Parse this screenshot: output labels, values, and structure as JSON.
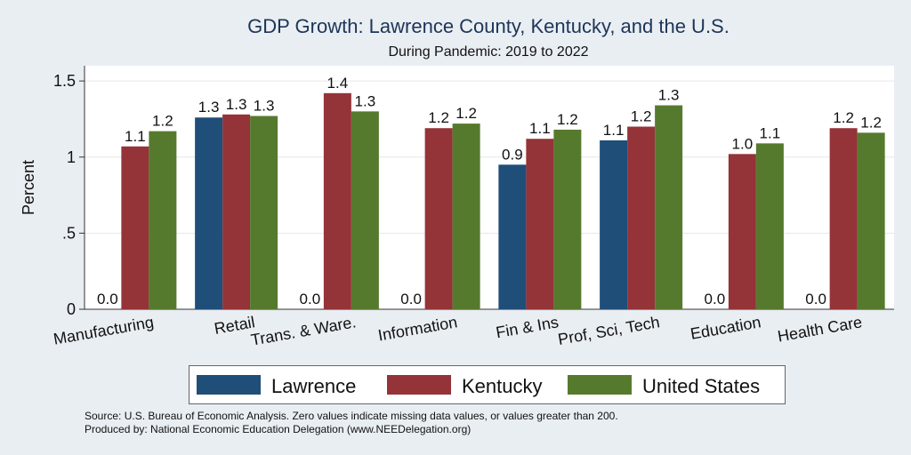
{
  "chart_data": {
    "type": "bar",
    "title": "GDP Growth: Lawrence County, Kentucky, and the U.S.",
    "subtitle": "During Pandemic: 2019 to 2022",
    "ylabel": "Percent",
    "xlabel": "",
    "ylim": [
      0,
      1.6
    ],
    "yticks": [
      {
        "value": 0,
        "label": "0"
      },
      {
        "value": 0.5,
        "label": ".5"
      },
      {
        "value": 1,
        "label": "1"
      },
      {
        "value": 1.5,
        "label": "1.5"
      }
    ],
    "grid": true,
    "legend_position": "bottom",
    "categories": [
      "Manufacturing",
      "Retail",
      "Trans. & Ware.",
      "Information",
      "Fin & Ins",
      "Prof, Sci, Tech",
      "Education",
      "Health Care"
    ],
    "series": [
      {
        "name": "Lawrence",
        "color": "#1f4e79",
        "values": [
          0,
          1.26,
          0,
          0,
          0.95,
          1.11,
          0,
          0
        ],
        "labels": [
          "0.0",
          "1.3",
          "0.0",
          "0.0",
          "0.9",
          "1.1",
          "0.0",
          "0.0"
        ]
      },
      {
        "name": "Kentucky",
        "color": "#943338",
        "values": [
          1.07,
          1.28,
          1.42,
          1.19,
          1.12,
          1.2,
          1.02,
          1.19
        ],
        "labels": [
          "1.1",
          "1.3",
          "1.4",
          "1.2",
          "1.1",
          "1.2",
          "1.0",
          "1.2"
        ]
      },
      {
        "name": "United States",
        "color": "#567a2d",
        "values": [
          1.17,
          1.27,
          1.3,
          1.22,
          1.18,
          1.34,
          1.09,
          1.16
        ],
        "labels": [
          "1.2",
          "1.3",
          "1.3",
          "1.2",
          "1.2",
          "1.3",
          "1.1",
          "1.2"
        ]
      }
    ]
  },
  "notes": {
    "source": "Source: U.S. Bureau of Economic Analysis. Zero values indicate missing data values, or values greater than 200.",
    "produced_by": "Produced by: National Economic Education Delegation (www.NEEDelegation.org)"
  }
}
